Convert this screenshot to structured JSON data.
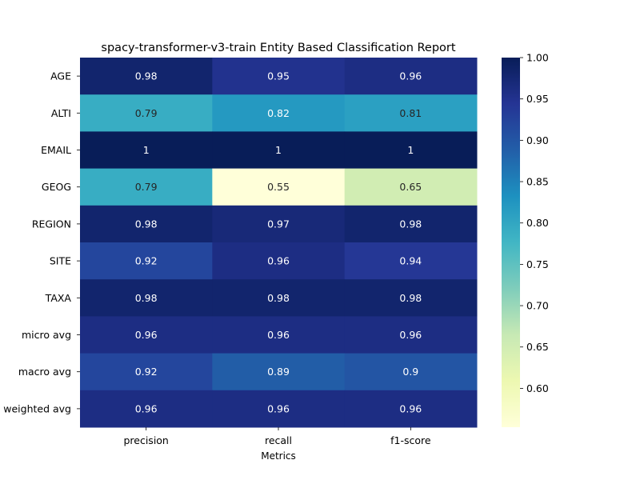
{
  "chart_data": {
    "type": "heatmap",
    "title": "spacy-transformer-v3-train Entity Based Classification Report",
    "xlabel": "Metrics",
    "ylabel": "",
    "x_categories": [
      "precision",
      "recall",
      "f1-score"
    ],
    "y_categories": [
      "AGE",
      "ALTI",
      "EMAIL",
      "GEOG",
      "REGION",
      "SITE",
      "TAXA",
      "micro avg",
      "macro avg",
      "weighted avg"
    ],
    "values": [
      [
        0.98,
        0.95,
        0.96
      ],
      [
        0.79,
        0.82,
        0.81
      ],
      [
        1,
        1,
        1
      ],
      [
        0.79,
        0.55,
        0.65
      ],
      [
        0.98,
        0.97,
        0.98
      ],
      [
        0.92,
        0.96,
        0.94
      ],
      [
        0.98,
        0.98,
        0.98
      ],
      [
        0.96,
        0.96,
        0.96
      ],
      [
        0.92,
        0.89,
        0.9
      ],
      [
        0.96,
        0.96,
        0.96
      ]
    ],
    "colormap": "YlGnBu",
    "color_range": [
      0.553,
      1.0
    ],
    "colorbar_ticks": [
      "0.60",
      "0.65",
      "0.70",
      "0.75",
      "0.80",
      "0.85",
      "0.90",
      "0.95",
      "1.00"
    ],
    "annotations": "cell values shown",
    "grid": false
  }
}
